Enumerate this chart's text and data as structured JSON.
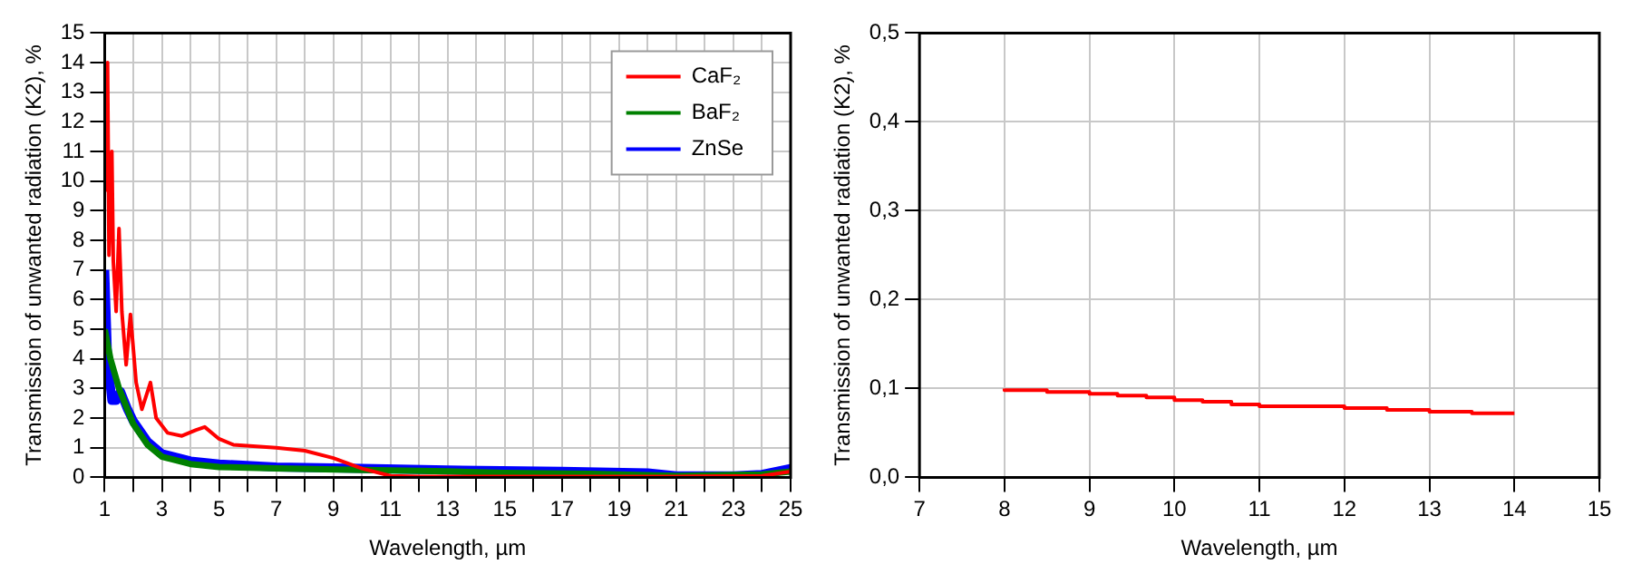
{
  "chart_data": [
    {
      "type": "line",
      "xlabel": "Wavelength, µm",
      "ylabel": "Transmission of unwanted radiation (K2), %",
      "legend": "top right",
      "grid": true,
      "xlim": [
        1,
        25
      ],
      "ylim": [
        0,
        15
      ],
      "xticks": [
        1,
        {
          "value": 2,
          "label": null
        },
        3,
        {
          "value": 4,
          "label": null
        },
        5,
        {
          "value": 6,
          "label": null
        },
        7,
        {
          "value": 8,
          "label": null
        },
        9,
        {
          "value": 10,
          "label": null
        },
        11,
        {
          "value": 12,
          "label": null
        },
        13,
        {
          "value": 14,
          "label": null
        },
        15,
        {
          "value": 16,
          "label": null
        },
        17,
        {
          "value": 18,
          "label": null
        },
        19,
        {
          "value": 20,
          "label": null
        },
        21,
        {
          "value": 22,
          "label": null
        },
        23,
        {
          "value": 24,
          "label": null
        },
        25
      ],
      "yticks": [
        0,
        1,
        2,
        3,
        4,
        5,
        6,
        7,
        8,
        9,
        10,
        11,
        12,
        13,
        14,
        15
      ],
      "series": [
        {
          "name": "CaF₂",
          "color": "#ff0000",
          "x": [
            1,
            1.05,
            1.1,
            1.15,
            1.25,
            1.3,
            1.4,
            1.5,
            1.6,
            1.75,
            1.9,
            2.1,
            2.3,
            2.6,
            2.8,
            3.2,
            3.7,
            4.2,
            4.5,
            5,
            5.5,
            7,
            8,
            9,
            10,
            11,
            12,
            15,
            18,
            21,
            24,
            25
          ],
          "values": [
            14,
            9.7,
            14,
            7.5,
            11,
            7.3,
            5.6,
            8.4,
            5.6,
            3.8,
            5.5,
            3.2,
            2.3,
            3.2,
            2,
            1.5,
            1.4,
            1.6,
            1.7,
            1.3,
            1.1,
            1,
            0.9,
            0.65,
            0.3,
            0.05,
            0.03,
            0.03,
            0.03,
            0.03,
            0.05,
            0.2
          ]
        },
        {
          "name": "BaF₂",
          "color": "#008000",
          "x": [
            1,
            1.2,
            1.5,
            2,
            2.5,
            3,
            4,
            5,
            7,
            10,
            13,
            15,
            18,
            21,
            24,
            25
          ],
          "values": [
            5,
            4,
            3,
            1.8,
            1.1,
            0.7,
            0.45,
            0.35,
            0.3,
            0.25,
            0.2,
            0.15,
            0.12,
            0.05,
            0.1,
            0.2
          ]
        },
        {
          "name": "ZnSe",
          "color": "#0000ff",
          "x": [
            1,
            1.1,
            1.25,
            1.4,
            1.55,
            1.8,
            2,
            2.5,
            3,
            4,
            5,
            7,
            10,
            13,
            17,
            20,
            21,
            23,
            24,
            25
          ],
          "values": [
            7,
            4,
            2.6,
            2.6,
            2.9,
            2.3,
            1.9,
            1.2,
            0.8,
            0.55,
            0.45,
            0.35,
            0.3,
            0.25,
            0.2,
            0.15,
            0.05,
            0.05,
            0.1,
            0.3
          ]
        }
      ]
    },
    {
      "type": "step",
      "xlabel": "Wavelength, µm",
      "ylabel": "Transmission of unwanted radiation (K2), %",
      "grid": true,
      "xlim": [
        7,
        15
      ],
      "ylim": [
        0,
        0.5
      ],
      "xticks": [
        7,
        8,
        9,
        10,
        11,
        12,
        13,
        14,
        15
      ],
      "yticks": [
        {
          "value": 0,
          "label": "0,0"
        },
        {
          "value": 0.1,
          "label": "0,1"
        },
        {
          "value": 0.2,
          "label": "0,2"
        },
        {
          "value": 0.3,
          "label": "0,3"
        },
        {
          "value": 0.4,
          "label": "0,4"
        },
        {
          "value": 0.5,
          "label": "0,5"
        }
      ],
      "series": [
        {
          "color": "#ff0000",
          "x": [
            8,
            8.5,
            9,
            9.33,
            9.67,
            10,
            10.33,
            10.67,
            11,
            12,
            12.5,
            13,
            13.5,
            14
          ],
          "values": [
            0.1,
            0.098,
            0.096,
            0.094,
            0.092,
            0.09,
            0.087,
            0.085,
            0.082,
            0.08,
            0.078,
            0.076,
            0.074,
            0.072
          ]
        }
      ]
    }
  ]
}
